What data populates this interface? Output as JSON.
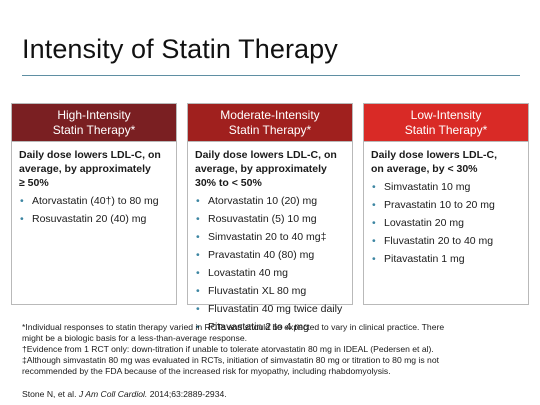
{
  "slide": {
    "title": "Intensity of Statin Therapy"
  },
  "columns": {
    "high": {
      "header_line1": "High-Intensity",
      "header_line2": "Statin Therapy*",
      "desc_line1": "Daily dose lowers LDL-C, on",
      "desc_line2": "average, by approximately",
      "desc_line3": "≥ 50%",
      "items": [
        "Atorvastatin (40†) to 80 mg",
        "Rosuvastatin 20 (40) mg"
      ]
    },
    "moderate": {
      "header_line1": "Moderate-Intensity",
      "header_line2": "Statin Therapy*",
      "desc_line1": "Daily dose lowers LDL-C, on",
      "desc_line2": "average, by approximately",
      "desc_line3": "30% to < 50%",
      "items": [
        "Atorvastatin 10 (20) mg",
        "Rosuvastatin (5) 10 mg",
        "Simvastatin 20 to 40 mg‡",
        "Pravastatin 40 (80) mg",
        "Lovastatin 40 mg",
        "Fluvastatin XL 80 mg",
        "Fluvastatin 40 mg twice daily",
        "Pitavastatin 2 to 4 mg"
      ]
    },
    "low": {
      "header_line1": "Low-Intensity",
      "header_line2": "Statin Therapy*",
      "desc_line1": "Daily dose lowers LDL-C,",
      "desc_line2": "on average, by < 30%",
      "items": [
        "Simvastatin 10 mg",
        "Pravastatin 10 to 20 mg",
        "Lovastatin 20 mg",
        "Fluvastatin 20 to 40 mg",
        "Pitavastatin 1 mg"
      ]
    }
  },
  "footnotes": {
    "note1_line1": "*Individual responses to statin therapy varied in RCTs and should be expected to vary in clinical practice. There",
    "note1_line2": "might be a biologic basis for a less-than-average response.",
    "note2": "†Evidence from 1 RCT only: down-titration if unable to tolerate atorvastatin 80 mg in IDEAL (Pedersen et al).",
    "note3_line1": "‡Although simvastatin 80 mg was evaluated in RCTs, initiation of simvastatin 80 mg or titration to 80 mg is not",
    "note3_line2": "recommended by the FDA because of the increased risk for myopathy, including rhabdomyolysis."
  },
  "citation": {
    "authors": "Stone N, et al.",
    "journal": "J Am Coll Cardiol.",
    "details": "2014;63:2889-2934."
  },
  "colors": {
    "high_header": "#7a1f22",
    "moderate_header": "#a0201e",
    "low_header": "#d92a26",
    "bullet": "#3d86a2",
    "title_rule": "#5f8fa3"
  }
}
